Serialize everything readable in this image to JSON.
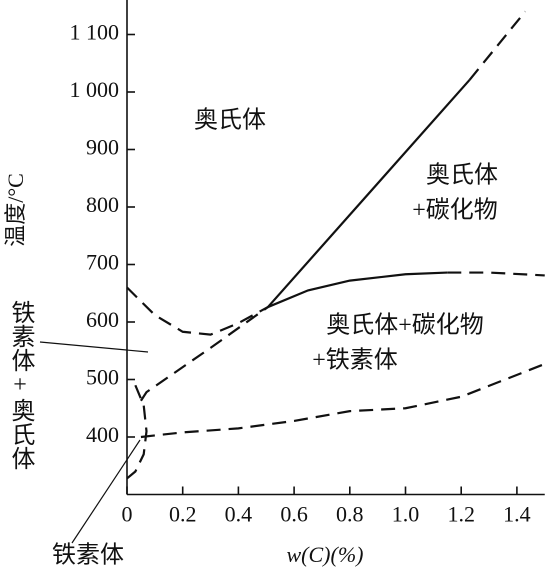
{
  "chart_data": {
    "type": "line",
    "x_label": "w(C)(%)",
    "y_label": "温度/°C",
    "xlim": [
      0,
      1.5
    ],
    "ylim": [
      300,
      1160
    ],
    "xticks": [
      0,
      0.2,
      0.4,
      0.6,
      0.8,
      {
        "value": 1,
        "label": "1.0"
      },
      1.2,
      1.4
    ],
    "yticks": [
      400,
      500,
      600,
      700,
      800,
      900,
      {
        "value": 1000,
        "label": "1 000"
      },
      {
        "value": 1100,
        "label": "1 100"
      }
    ],
    "color": "#111111",
    "series": [
      {
        "style": "solid",
        "x": [
          0.506,
          1.23
        ],
        "values": [
          626,
          1021
        ]
      },
      {
        "style": "dashed",
        "x": [
          1.23,
          1.43
        ],
        "values": [
          1021,
          1140
        ]
      },
      {
        "style": "solid",
        "x": [
          0.506,
          0.65,
          0.8,
          1.0,
          1.15
        ],
        "values": [
          626,
          655,
          672,
          683,
          686
        ]
      },
      {
        "style": "dashed",
        "x": [
          1.15,
          1.3,
          1.5
        ],
        "values": [
          686,
          686,
          681
        ]
      },
      {
        "style": "dashed",
        "x": [
          0,
          0.1,
          0.2,
          0.3,
          0.4,
          0.506
        ],
        "values": [
          660,
          612,
          583,
          578,
          598,
          626
        ]
      },
      {
        "style": "dashed",
        "x": [
          0.05,
          0.07,
          0.3,
          0.506
        ],
        "values": [
          463,
          478,
          555,
          626
        ]
      },
      {
        "style": "dashed",
        "x": [
          0.05,
          0.2,
          0.4,
          0.6,
          0.8,
          1.0,
          1.2,
          1.5
        ],
        "values": [
          400,
          408,
          415,
          428,
          445,
          450,
          470,
          527
        ]
      },
      {
        "style": "dashed",
        "x": [
          0.03,
          0.06,
          0.07,
          0.06,
          0.03,
          0.0
        ],
        "values": [
          490,
          455,
          410,
          370,
          340,
          328
        ]
      }
    ],
    "annotations": [
      {
        "text": "奥氏体"
      },
      {
        "text": "奥氏体"
      },
      {
        "text": "+碳化物"
      },
      {
        "text": "奥氏体+碳化物"
      },
      {
        "text": "+铁素体"
      },
      {
        "text": "铁素体+奥氏体"
      },
      {
        "text": "铁素体"
      }
    ]
  }
}
